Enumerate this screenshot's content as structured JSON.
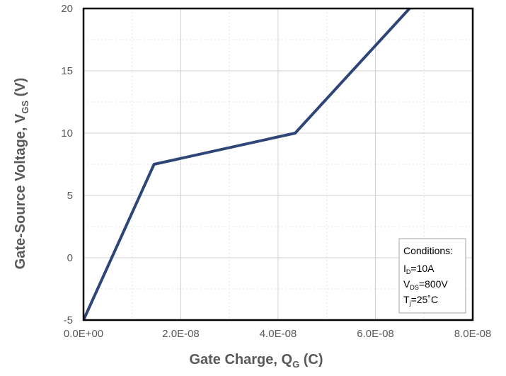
{
  "chart_data": {
    "type": "line",
    "title": "",
    "xlabel": {
      "main": "Gate Charge, Q",
      "sub": "G",
      "unit": " (C)"
    },
    "ylabel": {
      "main": "Gate-Source Voltage, V",
      "sub": "GS",
      "unit": " (V)"
    },
    "xlim": [
      0,
      8e-08
    ],
    "ylim": [
      -5,
      20
    ],
    "x_ticks": [
      0,
      2e-08,
      4e-08,
      6e-08,
      8e-08
    ],
    "x_tick_labels": [
      "0.0E+00",
      "2.0E-08",
      "4.0E-08",
      "6.0E-08",
      "8.0E-08"
    ],
    "y_ticks": [
      -5,
      0,
      5,
      10,
      15,
      20
    ],
    "y_tick_labels": [
      "-5",
      "0",
      "5",
      "10",
      "15",
      "20"
    ],
    "grid": {
      "major": true,
      "minor": true,
      "minor_y_step": 2.5
    },
    "series": [
      {
        "color": "#2e4577",
        "x": [
          0,
          1.45e-08,
          4.35e-08,
          6.7e-08
        ],
        "y": [
          -5,
          7.5,
          10,
          20
        ]
      }
    ],
    "annotation": {
      "position": "bottom-right",
      "lines": [
        {
          "text": "Conditions:",
          "sub": "",
          "rest": ""
        },
        {
          "text": "I",
          "sub": "D",
          "rest": "=10A"
        },
        {
          "text": "V",
          "sub": "DS",
          "rest": "=800V"
        },
        {
          "text": "T",
          "sub": "j",
          "rest": "=25˚C"
        }
      ]
    }
  }
}
